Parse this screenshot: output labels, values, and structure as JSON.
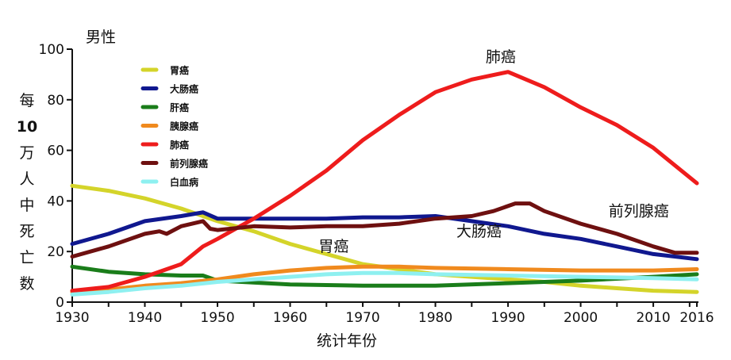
{
  "chart_data": {
    "type": "line",
    "title": "男性",
    "xlabel": "统计年份",
    "ylabel_chars": [
      "每",
      "10",
      "万",
      "人",
      "中",
      "死",
      "亡",
      "数"
    ],
    "xlim": [
      1930,
      2016
    ],
    "ylim": [
      0,
      100
    ],
    "xticks": [
      1930,
      1940,
      1950,
      1960,
      1970,
      1980,
      1990,
      2000,
      2010,
      2016
    ],
    "xtick_labels": [
      "1930",
      "1940",
      "1950",
      "1960",
      "1970",
      "1980",
      "1990",
      "2000",
      "2010",
      "2016"
    ],
    "yticks": [
      0,
      20,
      40,
      60,
      80,
      100
    ],
    "ytick_labels": [
      "0",
      "20",
      "40",
      "60",
      "80",
      "100"
    ],
    "grid": false,
    "legend_placement": "top-left",
    "series": [
      {
        "name": "胃癌",
        "color": "#d4d42a",
        "x": [
          1930,
          1935,
          1940,
          1945,
          1950,
          1955,
          1960,
          1965,
          1970,
          1975,
          1980,
          1985,
          1990,
          1995,
          2000,
          2005,
          2010,
          2016
        ],
        "y": [
          46,
          44,
          41,
          37,
          32,
          28,
          23,
          19,
          15,
          13,
          11,
          10,
          9,
          8,
          6.5,
          5.5,
          4.5,
          4
        ]
      },
      {
        "name": "大肠癌",
        "color": "#10188f",
        "x": [
          1930,
          1935,
          1940,
          1945,
          1948,
          1950,
          1955,
          1960,
          1965,
          1970,
          1975,
          1980,
          1985,
          1990,
          1995,
          2000,
          2005,
          2010,
          2016
        ],
        "y": [
          23,
          27,
          32,
          34,
          35.5,
          33,
          33,
          33,
          33,
          33.5,
          33.5,
          34,
          32,
          30,
          27,
          25,
          22,
          19,
          17
        ]
      },
      {
        "name": "肝癌",
        "color": "#1a7d1a",
        "x": [
          1930,
          1935,
          1940,
          1945,
          1948,
          1950,
          1960,
          1970,
          1980,
          1990,
          2000,
          2010,
          2016
        ],
        "y": [
          14,
          12,
          11,
          10.5,
          10.5,
          8.5,
          7,
          6.5,
          6.5,
          7.5,
          8.5,
          10,
          11
        ]
      },
      {
        "name": "胰腺癌",
        "color": "#f08a1e",
        "x": [
          1930,
          1935,
          1940,
          1945,
          1950,
          1955,
          1960,
          1965,
          1970,
          1975,
          1980,
          1990,
          2000,
          2010,
          2016
        ],
        "y": [
          4,
          5,
          6.5,
          7.5,
          9,
          11,
          12.5,
          13.5,
          14,
          14,
          13.5,
          13,
          12.5,
          12.5,
          13
        ]
      },
      {
        "name": "肺癌",
        "color": "#ee1c1c",
        "x": [
          1930,
          1935,
          1940,
          1945,
          1948,
          1950,
          1955,
          1960,
          1965,
          1970,
          1975,
          1980,
          1985,
          1990,
          1995,
          2000,
          2005,
          2010,
          2016
        ],
        "y": [
          4.5,
          6,
          10,
          15,
          22,
          25,
          33,
          42,
          52,
          64,
          74,
          83,
          88,
          91,
          85,
          77,
          70,
          61,
          47
        ]
      },
      {
        "name": "前列腺癌",
        "color": "#6e1010",
        "x": [
          1930,
          1935,
          1940,
          1942,
          1943,
          1945,
          1948,
          1949,
          1950,
          1955,
          1960,
          1965,
          1970,
          1975,
          1980,
          1985,
          1988,
          1991,
          1993,
          1995,
          2000,
          2005,
          2010,
          2013,
          2016
        ],
        "y": [
          18,
          22,
          27,
          28,
          27,
          30,
          32,
          29,
          28.5,
          30,
          29.5,
          30,
          30,
          31,
          33,
          34,
          36,
          39,
          39,
          36,
          31,
          27,
          22,
          19.5,
          19.5
        ]
      },
      {
        "name": "白血病",
        "color": "#8ef0f0",
        "x": [
          1930,
          1935,
          1940,
          1945,
          1950,
          1955,
          1960,
          1965,
          1970,
          1975,
          1980,
          1990,
          2000,
          2010,
          2016
        ],
        "y": [
          3,
          4,
          5.5,
          6.5,
          8,
          9,
          10,
          11,
          11.5,
          11.5,
          11,
          10.5,
          10,
          9.5,
          9
        ]
      }
    ],
    "annotations": [
      {
        "text": "肺癌",
        "x": 1989,
        "y": 95
      },
      {
        "text": "前列腺癌",
        "x": 2008,
        "y": 34
      },
      {
        "text": "大肠癌",
        "x": 1986,
        "y": 26
      },
      {
        "text": "胃癌",
        "x": 1966,
        "y": 20
      }
    ]
  }
}
